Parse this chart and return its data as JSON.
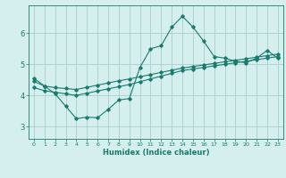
{
  "xlabel": "Humidex (Indice chaleur)",
  "bg_color": "#d4efed",
  "line_color": "#1a7a6e",
  "grid_color": "#a8ceca",
  "xlim": [
    -0.5,
    23.5
  ],
  "ylim": [
    2.6,
    6.9
  ],
  "xticks": [
    0,
    1,
    2,
    3,
    4,
    5,
    6,
    7,
    8,
    9,
    10,
    11,
    12,
    13,
    14,
    15,
    16,
    17,
    18,
    19,
    20,
    21,
    22,
    23
  ],
  "yticks": [
    3,
    4,
    5,
    6
  ],
  "line1_x": [
    0,
    1,
    2,
    3,
    4,
    5,
    6,
    7,
    8,
    9,
    10,
    11,
    12,
    13,
    14,
    15,
    16,
    17,
    18,
    19,
    20,
    21,
    22,
    23
  ],
  "line1_y": [
    4.55,
    4.3,
    4.05,
    3.65,
    3.25,
    3.3,
    3.28,
    3.55,
    3.85,
    3.9,
    4.9,
    5.5,
    5.6,
    6.2,
    6.55,
    6.2,
    5.75,
    5.25,
    5.2,
    5.1,
    5.05,
    5.2,
    5.45,
    5.2
  ],
  "line2_x": [
    0,
    1,
    2,
    3,
    4,
    5,
    6,
    7,
    8,
    9,
    10,
    11,
    12,
    13,
    14,
    15,
    16,
    17,
    18,
    19,
    20,
    21,
    22,
    23
  ],
  "line2_y": [
    4.45,
    4.3,
    4.25,
    4.22,
    4.19,
    4.26,
    4.33,
    4.4,
    4.47,
    4.53,
    4.6,
    4.67,
    4.74,
    4.81,
    4.88,
    4.93,
    4.98,
    5.03,
    5.08,
    5.13,
    5.18,
    5.23,
    5.28,
    5.33
  ],
  "line3_x": [
    0,
    1,
    2,
    3,
    4,
    5,
    6,
    7,
    8,
    9,
    10,
    11,
    12,
    13,
    14,
    15,
    16,
    17,
    18,
    19,
    20,
    21,
    22,
    23
  ],
  "line3_y": [
    4.25,
    4.15,
    4.1,
    4.05,
    4.0,
    4.07,
    4.14,
    4.21,
    4.28,
    4.35,
    4.44,
    4.53,
    4.62,
    4.71,
    4.8,
    4.85,
    4.9,
    4.95,
    5.0,
    5.05,
    5.1,
    5.15,
    5.2,
    5.25
  ],
  "marker": "D",
  "markersize": 1.8,
  "linewidth": 0.8,
  "tick_fontsize_x": 4.5,
  "tick_fontsize_y": 6.0,
  "xlabel_fontsize": 6.0
}
